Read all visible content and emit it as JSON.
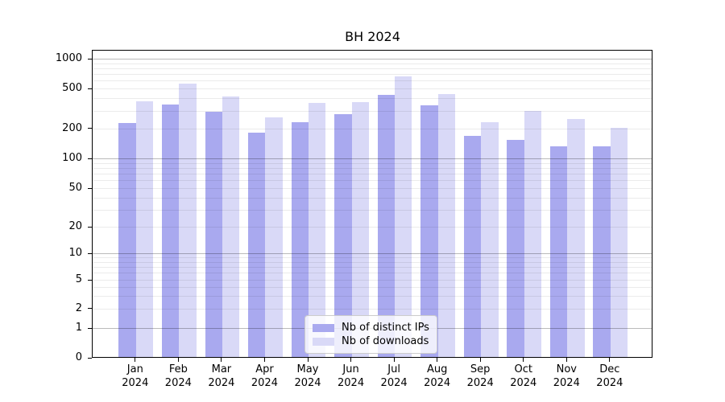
{
  "title": "BH 2024",
  "legend": {
    "items": [
      {
        "label": "Nb of distinct IPs",
        "color": "#a9a9ef"
      },
      {
        "label": "Nb of downloads",
        "color": "#d9d9f7"
      }
    ]
  },
  "chart_data": {
    "type": "bar",
    "title": "BH 2024",
    "categories": [
      {
        "month": "Jan",
        "year": "2024"
      },
      {
        "month": "Feb",
        "year": "2024"
      },
      {
        "month": "Mar",
        "year": "2024"
      },
      {
        "month": "Apr",
        "year": "2024"
      },
      {
        "month": "May",
        "year": "2024"
      },
      {
        "month": "Jun",
        "year": "2024"
      },
      {
        "month": "Jul",
        "year": "2024"
      },
      {
        "month": "Aug",
        "year": "2024"
      },
      {
        "month": "Sep",
        "year": "2024"
      },
      {
        "month": "Oct",
        "year": "2024"
      },
      {
        "month": "Nov",
        "year": "2024"
      },
      {
        "month": "Dec",
        "year": "2024"
      }
    ],
    "series": [
      {
        "name": "Nb of distinct IPs",
        "color": "#a9a9ef",
        "values": [
          220,
          340,
          285,
          178,
          225,
          270,
          420,
          330,
          165,
          150,
          130,
          130
        ]
      },
      {
        "name": "Nb of downloads",
        "color": "#d9d9f7",
        "values": [
          365,
          550,
          410,
          250,
          355,
          360,
          650,
          430,
          225,
          290,
          245,
          198
        ]
      }
    ],
    "xlabel": "",
    "ylabel": "",
    "yscale": "symlog",
    "ylim": [
      0,
      1000
    ],
    "y_ticks": [
      0,
      1,
      2,
      5,
      10,
      20,
      50,
      100,
      200,
      500,
      1000
    ],
    "grid": "both",
    "legend_position": "inside bottom-center"
  }
}
